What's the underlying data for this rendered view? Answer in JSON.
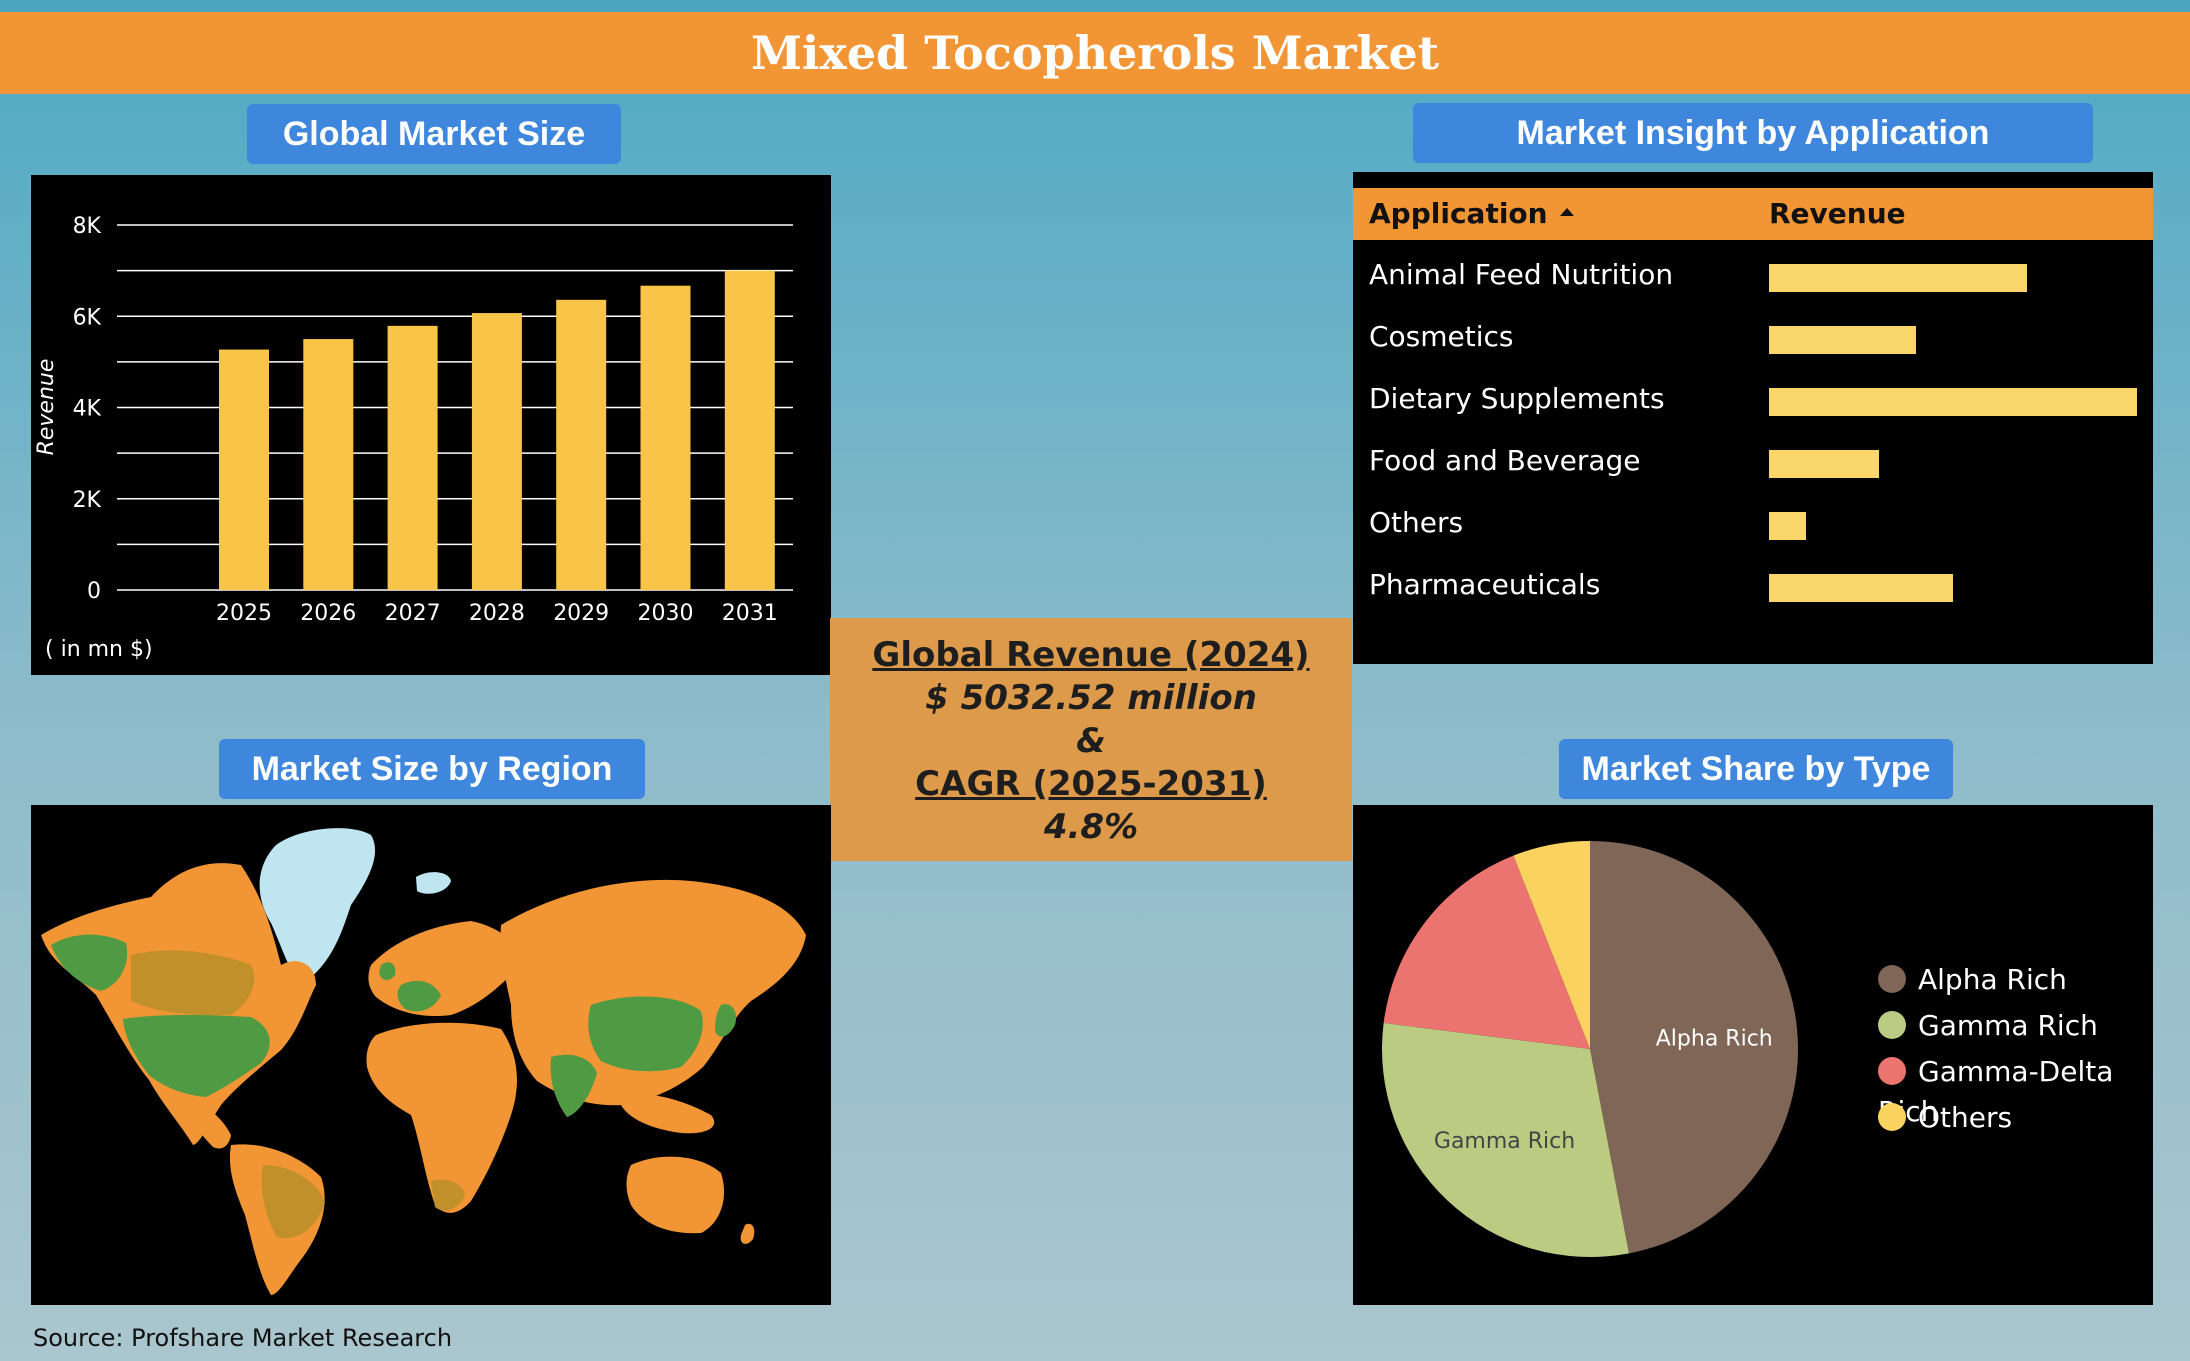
{
  "title": "Mixed Tocopherols Market",
  "sections": {
    "market_size": "Global Market Size",
    "application": "Market Insight by Application",
    "region": "Market Size by Region",
    "type": "Market Share by Type"
  },
  "center": {
    "revenue_label": "Global Revenue (2024)",
    "revenue_value": "$ 5032.52 million",
    "amp": "&",
    "cagr_label": "CAGR (2025-2031)",
    "cagr_value": "4.8%"
  },
  "source": "Source: Profshare Market Research",
  "colors": {
    "bar": "#f9c548",
    "app_bar": "#fad66a",
    "header": "#f19535",
    "pill": "#3e87dd",
    "map_orange": "#f19535",
    "map_green": "#4f9a43",
    "map_olive": "#c2902a",
    "map_ice": "#bfe6f0"
  },
  "chart_data": [
    {
      "type": "bar",
      "title": "Global Market Size",
      "categories": [
        "2025",
        "2026",
        "2027",
        "2028",
        "2029",
        "2030",
        "2031"
      ],
      "values": [
        5270,
        5500,
        5790,
        6070,
        6360,
        6670,
        7000
      ],
      "ylabel": "Revenue",
      "unit_note": "( in mn $)",
      "ylim": [
        0,
        8000
      ],
      "yticks": [
        0,
        2000,
        4000,
        6000,
        8000
      ],
      "ytick_labels": [
        "0",
        "2K",
        "4K",
        "6K",
        "8K"
      ],
      "grid": true
    },
    {
      "type": "table",
      "title": "Market Insight by Application",
      "columns": [
        "Application",
        "Revenue"
      ],
      "rows": [
        {
          "label": "Animal Feed Nutrition",
          "value": 0.7
        },
        {
          "label": "Cosmetics",
          "value": 0.4
        },
        {
          "label": "Dietary Supplements",
          "value": 1.0
        },
        {
          "label": "Food and Beverage",
          "value": 0.3
        },
        {
          "label": "Others",
          "value": 0.1
        },
        {
          "label": "Pharmaceuticals",
          "value": 0.5
        }
      ]
    },
    {
      "type": "pie",
      "title": "Market Share by Type",
      "slices": [
        {
          "name": "Alpha Rich",
          "value": 47,
          "color": "#806657",
          "label_color": "#ffffff"
        },
        {
          "name": "Gamma Rich",
          "value": 30,
          "color": "#bccb82",
          "label_color": "#444444"
        },
        {
          "name": "Gamma-Delta Rich",
          "value": 17,
          "color": "#ec7470",
          "label_color": ""
        },
        {
          "name": "Others",
          "value": 6,
          "color": "#f9d25f",
          "label_color": ""
        }
      ],
      "legend": "right"
    }
  ]
}
